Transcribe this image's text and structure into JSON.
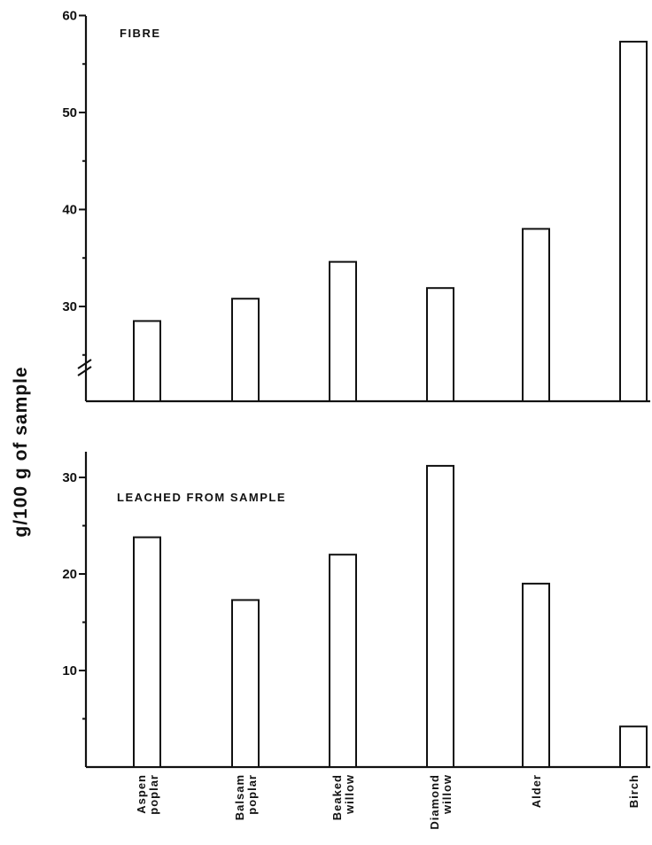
{
  "chart_data": [
    {
      "type": "bar",
      "title": "FIBRE",
      "ylabel": "g/100 g of sample",
      "categories": [
        "Aspen poplar",
        "Balsam poplar",
        "Beaked willow",
        "Diamond willow",
        "Alder",
        "Birch"
      ],
      "values": [
        28.5,
        30.8,
        34.6,
        31.9,
        38.0,
        57.3
      ],
      "ylim": [
        20,
        60
      ],
      "yticks": [
        "30",
        "40",
        "50",
        "60"
      ],
      "broken_axis": true,
      "grid": false
    },
    {
      "type": "bar",
      "title": "LEACHED FROM SAMPLE",
      "ylabel": "g/100 g of sample",
      "categories": [
        "Aspen poplar",
        "Balsam poplar",
        "Beaked willow",
        "Diamond willow",
        "Alder",
        "Birch"
      ],
      "category_labels": [
        [
          "Aspen",
          "poplar"
        ],
        [
          "Balsam",
          "poplar"
        ],
        [
          "Beaked",
          "willow"
        ],
        [
          "Diamond",
          "willow"
        ],
        [
          "Alder"
        ],
        [
          "Birch"
        ]
      ],
      "values": [
        23.8,
        17.3,
        22.0,
        31.2,
        19.0,
        4.2
      ],
      "ylim": [
        0,
        32
      ],
      "yticks": [
        "10",
        "20",
        "30"
      ],
      "grid": false
    }
  ]
}
